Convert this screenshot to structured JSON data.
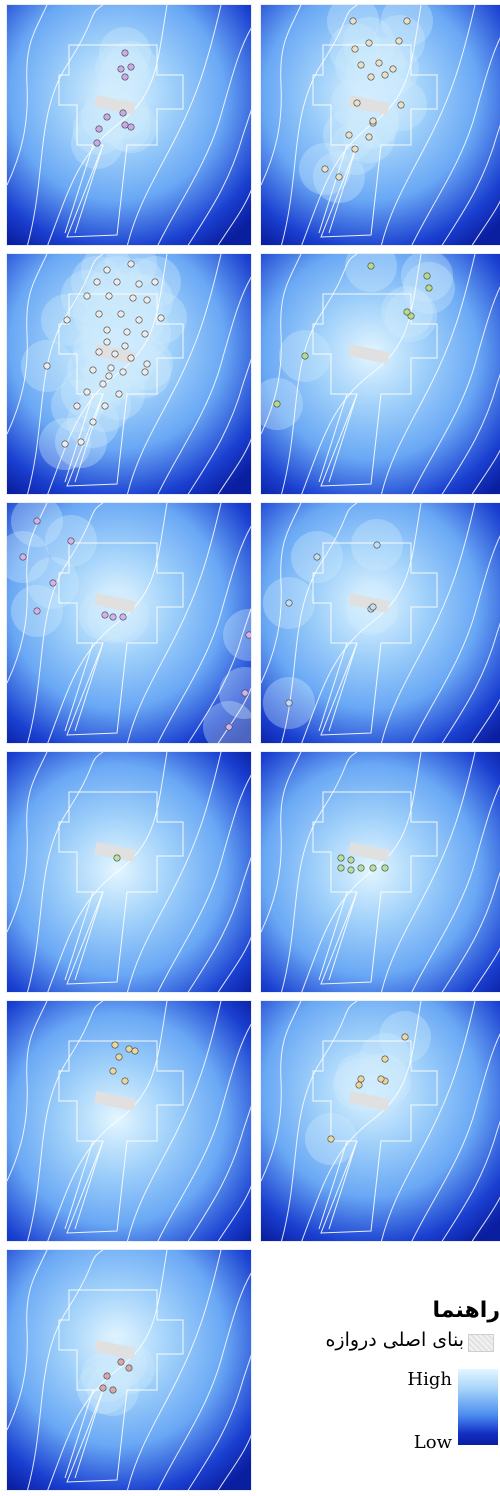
{
  "legend": {
    "title": "راهنما",
    "building_label": "بنای اصلی دروازه",
    "high_label": "High",
    "low_label": "Low"
  },
  "colors": {
    "high": "#e4f6ff",
    "mid": "#6aa8f5",
    "low": "#0a1ea0",
    "outline": "#ffffff",
    "building": "#e0e0e0"
  },
  "panels": [
    {
      "id": "1",
      "marker_color": "#c9a9e6",
      "glow": "medium",
      "marker_count": 10
    },
    {
      "id": "2",
      "marker_color": "#e8e0c8",
      "glow": "medium",
      "marker_count": 19
    },
    {
      "id": "3",
      "marker_color": "#ececec",
      "glow": "medium",
      "marker_count": 38
    },
    {
      "id": "4",
      "marker_color": "#b7d98a",
      "glow": "scattered",
      "marker_count": 7
    },
    {
      "id": "5",
      "marker_color": "#d2b2ee",
      "glow": "scattered",
      "marker_count": 11
    },
    {
      "id": "6",
      "marker_color": "#c4def0",
      "glow": "scattered",
      "marker_count": 6
    },
    {
      "id": "7",
      "marker_color": "#b7e2a2",
      "glow": "small",
      "marker_count": 1
    },
    {
      "id": "8",
      "marker_color": "#b5e0a0",
      "glow": "large",
      "marker_count": 7
    },
    {
      "id": "9",
      "marker_color": "#ead7a0",
      "glow": "large",
      "marker_count": 6
    },
    {
      "id": "10",
      "marker_color": "#ead7a0",
      "glow": "medium",
      "marker_count": 7
    },
    {
      "id": "11",
      "marker_color": "#d8a8a8",
      "glow": "medium",
      "marker_count": 5
    }
  ]
}
